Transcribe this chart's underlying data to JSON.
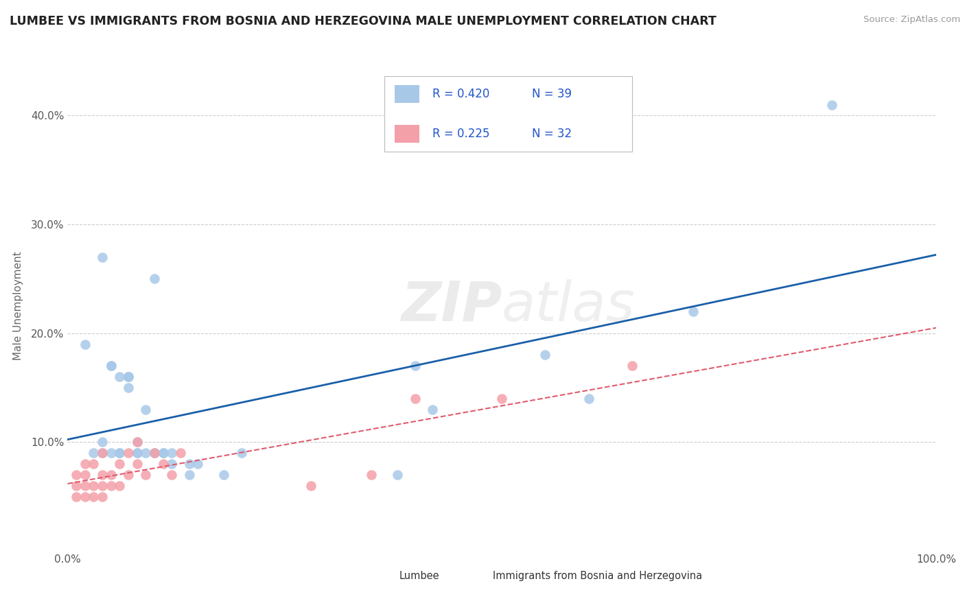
{
  "title": "LUMBEE VS IMMIGRANTS FROM BOSNIA AND HERZEGOVINA MALE UNEMPLOYMENT CORRELATION CHART",
  "source": "Source: ZipAtlas.com",
  "ylabel": "Male Unemployment",
  "xlim": [
    0,
    1.0
  ],
  "ylim": [
    0,
    0.45
  ],
  "yticks": [
    0.0,
    0.1,
    0.2,
    0.3,
    0.4
  ],
  "ytick_labels": [
    "",
    "10.0%",
    "20.0%",
    "30.0%",
    "40.0%"
  ],
  "xtick_labels": [
    "0.0%",
    "100.0%"
  ],
  "legend_r1": "R = 0.420",
  "legend_n1": "N = 39",
  "legend_r2": "R = 0.225",
  "legend_n2": "N = 32",
  "lumbee_color": "#a8c8e8",
  "bosnia_color": "#f4a0a8",
  "trendline1_color": "#1a5fa8",
  "trendline2_color": "#e05a6e",
  "watermark_zip": "ZIP",
  "watermark_atlas": "atlas",
  "lumbee_x": [
    0.02,
    0.03,
    0.04,
    0.04,
    0.04,
    0.05,
    0.05,
    0.05,
    0.06,
    0.06,
    0.06,
    0.07,
    0.07,
    0.07,
    0.07,
    0.08,
    0.08,
    0.08,
    0.09,
    0.09,
    0.1,
    0.1,
    0.1,
    0.11,
    0.11,
    0.12,
    0.12,
    0.14,
    0.14,
    0.15,
    0.18,
    0.2,
    0.38,
    0.4,
    0.42,
    0.55,
    0.6,
    0.72,
    0.88
  ],
  "lumbee_y": [
    0.19,
    0.09,
    0.09,
    0.1,
    0.27,
    0.09,
    0.17,
    0.17,
    0.09,
    0.16,
    0.09,
    0.16,
    0.16,
    0.15,
    0.16,
    0.09,
    0.09,
    0.1,
    0.09,
    0.13,
    0.09,
    0.09,
    0.25,
    0.09,
    0.09,
    0.08,
    0.09,
    0.08,
    0.07,
    0.08,
    0.07,
    0.09,
    0.07,
    0.17,
    0.13,
    0.18,
    0.14,
    0.22,
    0.41
  ],
  "bosnia_x": [
    0.01,
    0.01,
    0.01,
    0.02,
    0.02,
    0.02,
    0.02,
    0.03,
    0.03,
    0.03,
    0.04,
    0.04,
    0.04,
    0.04,
    0.05,
    0.05,
    0.06,
    0.06,
    0.07,
    0.07,
    0.08,
    0.08,
    0.09,
    0.1,
    0.11,
    0.12,
    0.13,
    0.28,
    0.35,
    0.4,
    0.5,
    0.65
  ],
  "bosnia_y": [
    0.05,
    0.06,
    0.07,
    0.05,
    0.06,
    0.07,
    0.08,
    0.05,
    0.06,
    0.08,
    0.05,
    0.06,
    0.07,
    0.09,
    0.06,
    0.07,
    0.06,
    0.08,
    0.07,
    0.09,
    0.08,
    0.1,
    0.07,
    0.09,
    0.08,
    0.07,
    0.09,
    0.06,
    0.07,
    0.14,
    0.14,
    0.17
  ],
  "background_color": "#ffffff",
  "grid_color": "#cccccc",
  "legend_text_color": "#2255cc"
}
